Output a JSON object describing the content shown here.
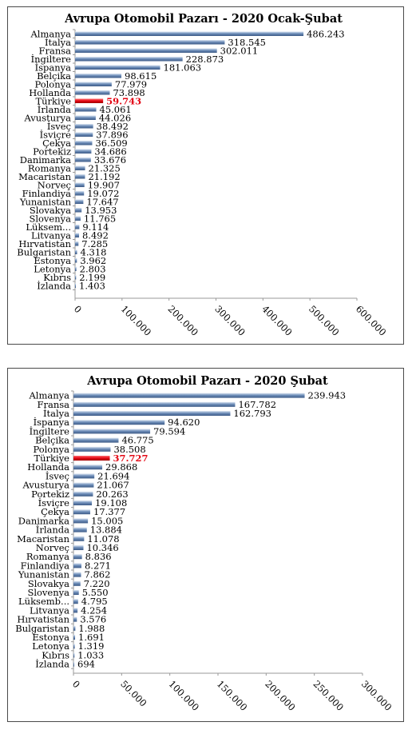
{
  "chart_data": [
    {
      "type": "bar",
      "orientation": "horizontal",
      "title": "Avrupa Otomobil Pazarı - 2020 Ocak-Şubat",
      "xlim": [
        0,
        600000
      ],
      "ticks": [
        "0",
        "100.000",
        "200.000",
        "300.000",
        "400.000",
        "500.000",
        "600.000"
      ],
      "tick_values": [
        0,
        100000,
        200000,
        300000,
        400000,
        500000,
        600000
      ],
      "highlight": "Türkiye",
      "highlight_color": "#e30613",
      "bar_color": "#6f8fba",
      "categories": [
        "Almanya",
        "İtalya",
        "Fransa",
        "İngiltere",
        "İspanya",
        "Belçika",
        "Polonya",
        "Hollanda",
        "Türkiye",
        "İrlanda",
        "Avusturya",
        "İsveç",
        "İsviçre",
        "Çekya",
        "Portekiz",
        "Danimarka",
        "Romanya",
        "Macaristan",
        "Norveç",
        "Finlandiya",
        "Yunanistan",
        "Slovakya",
        "Slovenya",
        "Lüksem...",
        "Litvanya",
        "Hırvatistan",
        "Bulgaristan",
        "Estonya",
        "Letonya",
        "Kıbrıs",
        "İzlanda"
      ],
      "values": [
        486243,
        318545,
        302011,
        228873,
        181063,
        98615,
        77979,
        73898,
        59743,
        45061,
        44026,
        38492,
        37896,
        36509,
        34686,
        33676,
        21325,
        21192,
        19907,
        19072,
        17647,
        13953,
        11765,
        9114,
        8492,
        7285,
        4318,
        3962,
        2803,
        2199,
        1403
      ],
      "value_labels": [
        "486.243",
        "318.545",
        "302.011",
        "228.873",
        "181.063",
        "98.615",
        "77.979",
        "73.898",
        "59.743",
        "45.061",
        "44.026",
        "38.492",
        "37.896",
        "36.509",
        "34.686",
        "33.676",
        "21.325",
        "21.192",
        "19.907",
        "19.072",
        "17.647",
        "13.953",
        "11.765",
        "9.114",
        "8.492",
        "7.285",
        "4.318",
        "3.962",
        "2.803",
        "2.199",
        "1.403"
      ]
    },
    {
      "type": "bar",
      "orientation": "horizontal",
      "title": "Avrupa Otomobil Pazarı - 2020 Şubat",
      "xlim": [
        0,
        300000
      ],
      "ticks": [
        "0",
        "50.000",
        "100.000",
        "150.000",
        "200.000",
        "250.000",
        "300.000"
      ],
      "tick_values": [
        0,
        50000,
        100000,
        150000,
        200000,
        250000,
        300000
      ],
      "highlight": "Türkiye",
      "highlight_color": "#e30613",
      "bar_color": "#6f8fba",
      "categories": [
        "Almanya",
        "Fransa",
        "İtalya",
        "İspanya",
        "İngiltere",
        "Belçika",
        "Polonya",
        "Türkiye",
        "Hollanda",
        "İsveç",
        "Avusturya",
        "Portekiz",
        "İsviçre",
        "Çekya",
        "Danimarka",
        "İrlanda",
        "Macaristan",
        "Norveç",
        "Romanya",
        "Finlandiya",
        "Yunanistan",
        "Slovakya",
        "Slovenya",
        "Lüksemb...",
        "Litvanya",
        "Hırvatistan",
        "Bulgaristan",
        "Estonya",
        "Letonya",
        "Kıbrıs",
        "İzlanda"
      ],
      "values": [
        239943,
        167782,
        162793,
        94620,
        79594,
        46775,
        38508,
        37727,
        29868,
        21694,
        21067,
        20263,
        19108,
        17377,
        15005,
        13884,
        11078,
        10346,
        8836,
        8271,
        7862,
        7220,
        5550,
        4795,
        4254,
        3576,
        1988,
        1691,
        1319,
        1033,
        694
      ],
      "value_labels": [
        "239.943",
        "167.782",
        "162.793",
        "94.620",
        "79.594",
        "46.775",
        "38.508",
        "37.727",
        "29.868",
        "21.694",
        "21.067",
        "20.263",
        "19.108",
        "17.377",
        "15.005",
        "13.884",
        "11.078",
        "10.346",
        "8.836",
        "8.271",
        "7.862",
        "7.220",
        "5.550",
        "4.795",
        "4.254",
        "3.576",
        "1.988",
        "1.691",
        "1.319",
        "1.033",
        "694"
      ]
    }
  ]
}
